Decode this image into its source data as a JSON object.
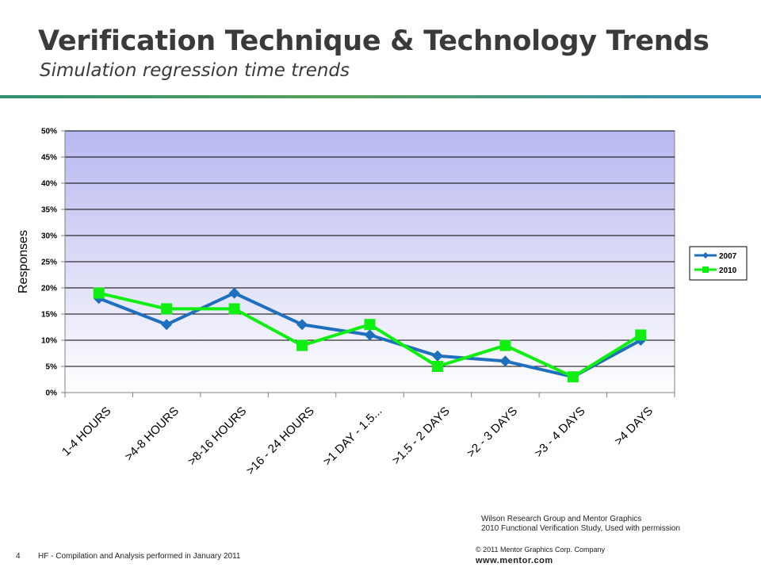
{
  "slide": {
    "title": "Verification Technique & Technology Trends",
    "subtitle": "Simulation regression time trends",
    "page_number": "4",
    "footer_left": "HF - Compilation and Analysis performed in January 2011",
    "credit_line1": "Wilson Research Group and Mentor Graphics",
    "credit_line2": "2010 Functional Verification Study,  Used with permission",
    "copyright": "© 2011 Mentor Graphics Corp. Company",
    "website": "www.mentor.com"
  },
  "colors": {
    "series_2007": "#1f6fbf",
    "series_2010": "#11ee11",
    "plot_top": "#b8b8f0",
    "plot_bottom": "#ffffff"
  },
  "chart_data": {
    "type": "line",
    "title": "",
    "xlabel": "",
    "ylabel": "Responses",
    "ylim": [
      0,
      50
    ],
    "yticks": [
      "0%",
      "5%",
      "10%",
      "15%",
      "20%",
      "25%",
      "30%",
      "35%",
      "40%",
      "45%",
      "50%"
    ],
    "grid": true,
    "legend_position": "right",
    "categories": [
      "1-4 HOURS",
      ">4-8 HOURS",
      ">8-16 HOURS",
      ">16 - 24 HOURS",
      ">1 DAY - 1.5...",
      ">1.5 - 2 DAYS",
      ">2 - 3 DAYS",
      ">3 - 4 DAYS",
      ">4 DAYS"
    ],
    "series": [
      {
        "name": "2007",
        "marker": "diamond",
        "values": [
          18,
          13,
          19,
          13,
          11,
          7,
          6,
          3,
          10
        ]
      },
      {
        "name": "2010",
        "marker": "square",
        "values": [
          19,
          16,
          16,
          9,
          13,
          5,
          9,
          3,
          11
        ]
      }
    ]
  }
}
